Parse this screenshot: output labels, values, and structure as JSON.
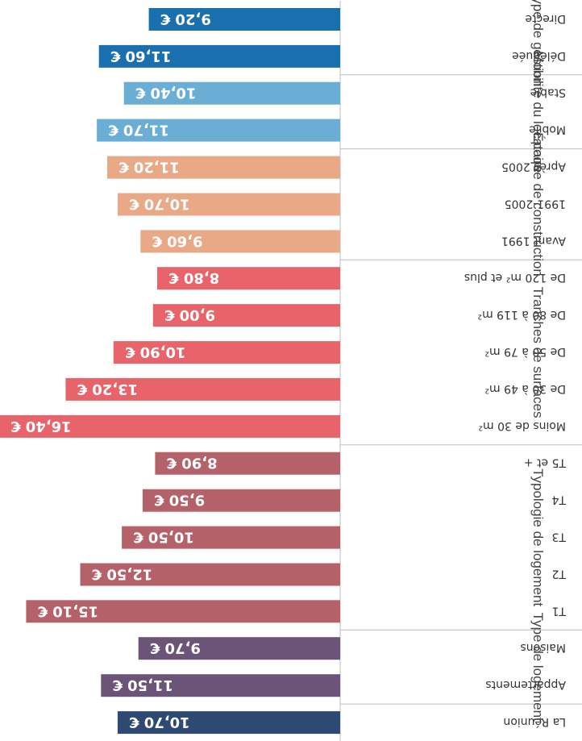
{
  "chart_data": {
    "type": "bar",
    "orientation": "horizontal",
    "unit": "€",
    "groups": [
      {
        "label": "",
        "color": "#2e4a72",
        "categories": [
          {
            "label": "La Réunion",
            "value": 10.7,
            "value_label": "10,70 €"
          }
        ]
      },
      {
        "label": "Type de logement",
        "color": "#6b5478",
        "categories": [
          {
            "label": "Appartements",
            "value": 11.5,
            "value_label": "11,50 €"
          },
          {
            "label": "Maisons",
            "value": 9.7,
            "value_label": "9,70 €"
          }
        ]
      },
      {
        "label": "Typologie de logement",
        "color": "#b5616a",
        "categories": [
          {
            "label": "T1",
            "value": 15.1,
            "value_label": "15,10 €"
          },
          {
            "label": "T2",
            "value": 12.5,
            "value_label": "12,50 €"
          },
          {
            "label": "T3",
            "value": 10.5,
            "value_label": "10,50 €"
          },
          {
            "label": "T4",
            "value": 9.5,
            "value_label": "9,50 €"
          },
          {
            "label": "T5 et +",
            "value": 8.9,
            "value_label": "8,90 €"
          }
        ]
      },
      {
        "label": "Tranches de surfaces",
        "color": "#e8646a",
        "categories": [
          {
            "label": "Moins de 30 m²",
            "value": 16.4,
            "value_label": "16,40 €"
          },
          {
            "label": "De 30 à 49 m²",
            "value": 13.2,
            "value_label": "13,20 €"
          },
          {
            "label": "De 50 à 79 m²",
            "value": 10.9,
            "value_label": "10,90 €"
          },
          {
            "label": "De 80 à 119 m²",
            "value": 9.0,
            "value_label": "9,00 €"
          },
          {
            "label": "De 120 m² et plus",
            "value": 8.8,
            "value_label": "8,80 €"
          }
        ]
      },
      {
        "label": "Époque de construction",
        "color": "#e9a886",
        "categories": [
          {
            "label": "Avant 1991",
            "value": 9.6,
            "value_label": "9,60 €"
          },
          {
            "label": "1991-2005",
            "value": 10.7,
            "value_label": "10,70 €"
          },
          {
            "label": "Après 2005",
            "value": 11.2,
            "value_label": "11,20 €"
          }
        ]
      },
      {
        "label": "Mobilité du locataire",
        "color": "#6aaed6",
        "categories": [
          {
            "label": "Mobile",
            "value": 11.7,
            "value_label": "11,70 €"
          },
          {
            "label": "Stable",
            "value": 10.4,
            "value_label": "10,40 €"
          }
        ]
      },
      {
        "label": "Type de gestion",
        "color": "#1a6fae",
        "categories": [
          {
            "label": "Déléguée",
            "value": 11.6,
            "value_label": "11,60 €"
          },
          {
            "label": "Directe",
            "value": 9.2,
            "value_label": "9,20 €"
          }
        ]
      }
    ]
  }
}
